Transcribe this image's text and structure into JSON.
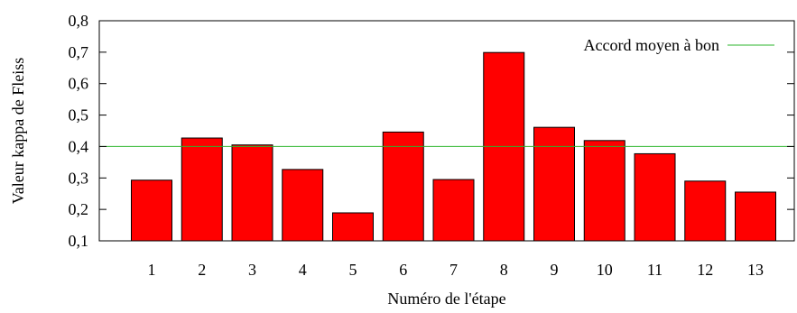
{
  "chart_data": {
    "type": "bar",
    "title": "",
    "xlabel": "Numéro de l'étape",
    "ylabel": "Valeur kappa de Fleiss",
    "categories": [
      "1",
      "2",
      "3",
      "4",
      "5",
      "6",
      "7",
      "8",
      "9",
      "10",
      "11",
      "12",
      "13"
    ],
    "values": [
      0.293,
      0.427,
      0.405,
      0.327,
      0.189,
      0.446,
      0.295,
      0.699,
      0.461,
      0.419,
      0.377,
      0.29,
      0.255
    ],
    "ylim": [
      0.1,
      0.8
    ],
    "yticks": [
      "0,1",
      "0,2",
      "0,3",
      "0,4",
      "0,5",
      "0,6",
      "0,7",
      "0,8"
    ],
    "bar_color": "#ff0000",
    "reference_line": {
      "label": "Accord moyen à bon",
      "value": 0.4,
      "color": "#2bb52b"
    },
    "legend_position": "top-right",
    "grid": false
  }
}
